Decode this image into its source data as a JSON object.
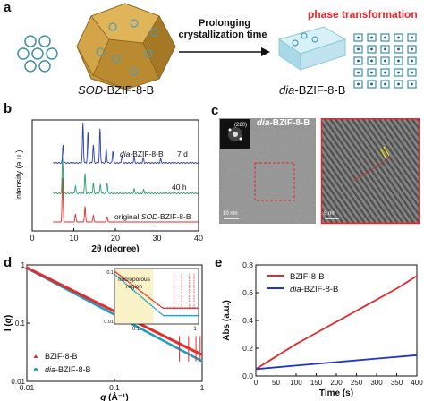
{
  "panel_a": {
    "label": "a",
    "sod_name_italic": "SOD",
    "sod_name_rest": "-BZIF-8-B",
    "arrow_line1": "Prolonging",
    "arrow_line2": "crystallization time",
    "phase_transformation": "phase transformation",
    "dia_name_italic": "dia",
    "dia_name_rest": "-BZIF-8-B",
    "colors": {
      "phase": "#e8262b",
      "cube": "#c89a3a",
      "slab": "#bfe3ef"
    }
  },
  "panel_b": {
    "label": "b",
    "chart_data": {
      "type": "line",
      "xlabel": "2θ (degree)",
      "ylabel": "Intensity (a.u.)",
      "xlim": [
        0,
        40
      ],
      "xticks": [
        0,
        10,
        20,
        30,
        40
      ],
      "series": [
        {
          "name": "original SOD-BZIF-8-B",
          "name_italic": "SOD",
          "prefix": "original ",
          "suffix": "-BZIF-8-B",
          "color": "#e32b2b",
          "peaks": [
            [
              7.3,
              1.0
            ],
            [
              10.4,
              0.18
            ],
            [
              12.7,
              0.35
            ],
            [
              14.7,
              0.15
            ],
            [
              18.0,
              0.12
            ]
          ]
        },
        {
          "name": "40 h",
          "color": "#23a36a",
          "peaks": [
            [
              7.3,
              1.0
            ],
            [
              10.4,
              0.22
            ],
            [
              12.7,
              0.55
            ],
            [
              14.7,
              0.3
            ],
            [
              16.4,
              0.25
            ],
            [
              18.0,
              0.3
            ],
            [
              24.5,
              0.12
            ],
            [
              26.8,
              0.1
            ]
          ]
        },
        {
          "name": "dia-BZIF-8-B 7 d",
          "name_italic": "dia",
          "suffix": "-BZIF-8-B",
          "time": "7 d",
          "color": "#2a3db5",
          "peaks": [
            [
              7.4,
              0.45
            ],
            [
              12.2,
              1.0
            ],
            [
              13.4,
              0.75
            ],
            [
              14.7,
              0.45
            ],
            [
              16.3,
              0.85
            ],
            [
              17.8,
              0.35
            ],
            [
              19.4,
              0.3
            ],
            [
              21.6,
              0.2
            ],
            [
              24.5,
              0.15
            ],
            [
              26.7,
              0.12
            ],
            [
              30.9,
              0.1
            ]
          ]
        }
      ]
    }
  },
  "panel_c": {
    "label": "c",
    "title_italic": "dia",
    "title_rest": "-BZIF-8-B",
    "fft_label": "(220)",
    "scale_left": "10 nm",
    "scale_right": "5 nm",
    "box_color": "#e8262b"
  },
  "panel_d": {
    "label": "d",
    "chart_data": {
      "type": "scatter",
      "xscale": "log",
      "yscale": "log",
      "xlabel": "q (Å⁻¹)",
      "ylabel": "I (q)",
      "xlim": [
        0.01,
        1
      ],
      "ylim": [
        0.01,
        1
      ],
      "xticks": [
        "0.01",
        "0.1",
        "1"
      ],
      "yticks": [
        "0.01",
        "0.1",
        "1"
      ],
      "series": [
        {
          "name": "BZIF-8-B",
          "color": "#e32b2b"
        },
        {
          "name": "dia-BZIF-8-B",
          "name_italic": "dia",
          "suffix": "-BZIF-8-B",
          "color": "#1e9fbe"
        }
      ],
      "inset": {
        "annotation_line1": "microporous",
        "annotation_line2": "region",
        "xticks": [
          "0.1",
          "1"
        ],
        "yticks": [
          "0.01",
          "0.1"
        ]
      }
    }
  },
  "panel_e": {
    "label": "e",
    "chart_data": {
      "type": "line",
      "xlabel": "Time (s)",
      "ylabel": "Abs (a.u.)",
      "xlim": [
        0,
        400
      ],
      "ylim": [
        0,
        0.8
      ],
      "xticks": [
        0,
        50,
        100,
        150,
        200,
        250,
        300,
        350,
        400
      ],
      "yticks": [
        0.0,
        0.2,
        0.4,
        0.6,
        0.8
      ],
      "series": [
        {
          "name": "BZIF-8-B",
          "color": "#e32b2b",
          "points": [
            [
              0,
              0.05
            ],
            [
              50,
              0.14
            ],
            [
              100,
              0.23
            ],
            [
              150,
              0.31
            ],
            [
              200,
              0.39
            ],
            [
              250,
              0.47
            ],
            [
              300,
              0.55
            ],
            [
              350,
              0.63
            ],
            [
              400,
              0.72
            ]
          ]
        },
        {
          "name": "dia-BZIF-8-B",
          "name_italic": "dia",
          "suffix": "-BZIF-8-B",
          "color": "#2233c8",
          "points": [
            [
              0,
              0.05
            ],
            [
              100,
              0.075
            ],
            [
              200,
              0.1
            ],
            [
              300,
              0.125
            ],
            [
              400,
              0.15
            ]
          ]
        }
      ]
    }
  }
}
